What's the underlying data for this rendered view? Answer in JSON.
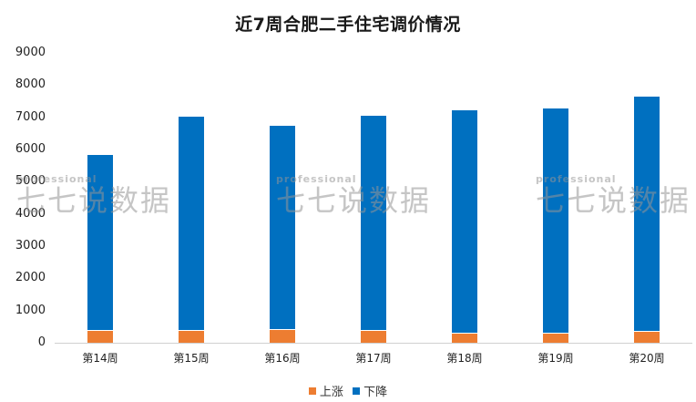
{
  "chart_data": {
    "type": "bar",
    "stacked": true,
    "title": "近7周合肥二手住宅调价情况",
    "xlabel": "",
    "ylabel": "",
    "ylim": [
      0,
      9000
    ],
    "yticks": [
      "9000",
      "8000",
      "7000",
      "6000",
      "5000",
      "4000",
      "3000",
      "2000",
      "1000",
      "0"
    ],
    "grid": false,
    "legend_position": "bottom",
    "categories": [
      "第14周",
      "第15周",
      "第16周",
      "第17周",
      "第18周",
      "第19周",
      "第20周"
    ],
    "series": [
      {
        "name": "上涨",
        "color": "#ED7D31",
        "values": [
          370,
          370,
          400,
          370,
          290,
          290,
          340
        ]
      },
      {
        "name": "下降",
        "color": "#0070C0",
        "values": [
          5470,
          6660,
          6340,
          6680,
          6940,
          6990,
          7310
        ]
      }
    ]
  },
  "watermark": {
    "small": "professional",
    "big": "七七说数据"
  }
}
